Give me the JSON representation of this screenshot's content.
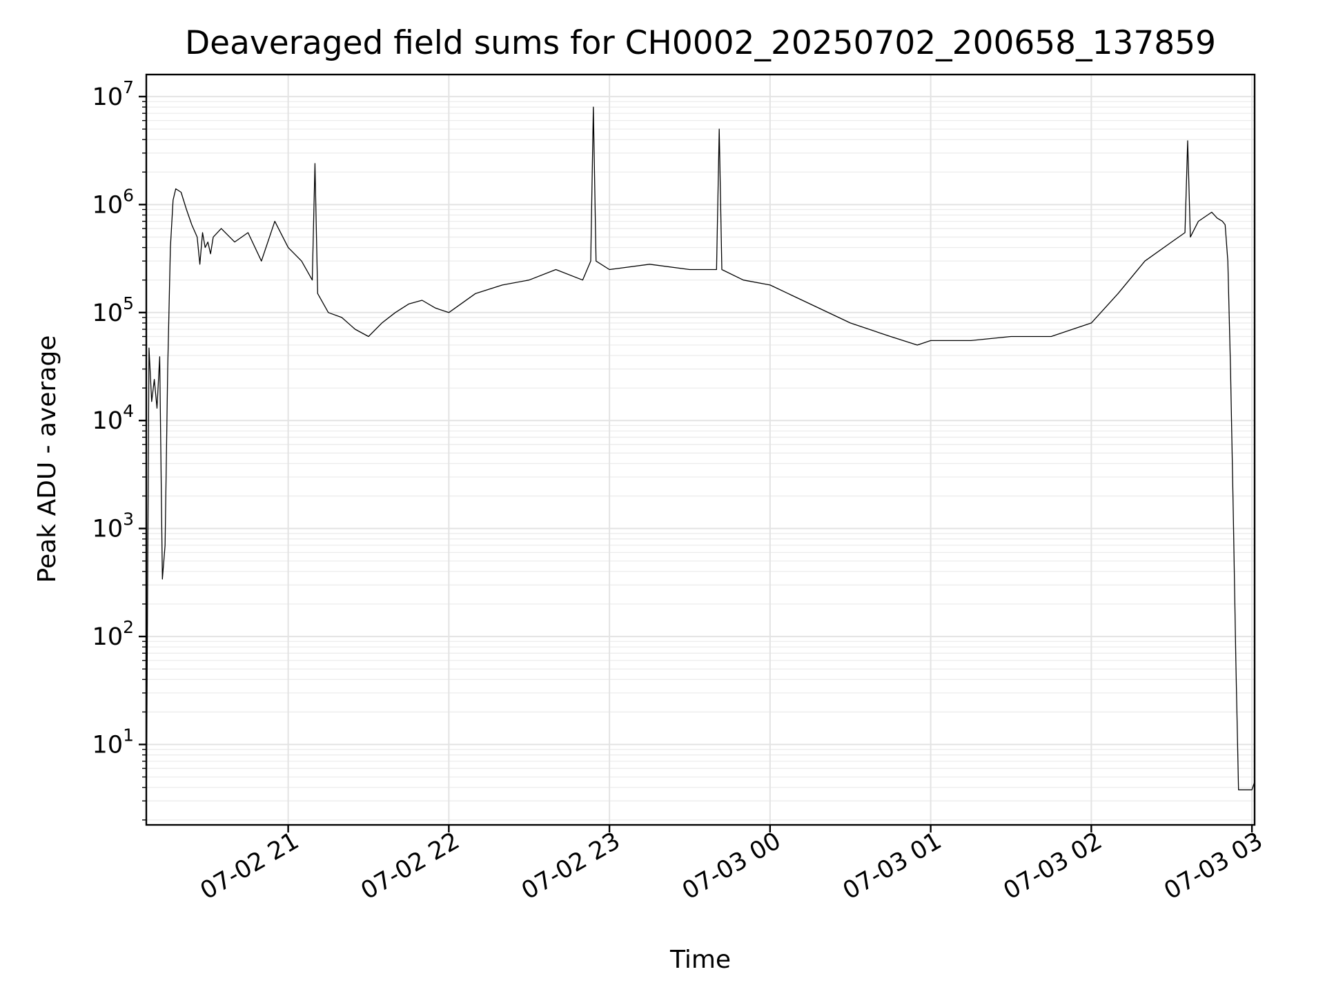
{
  "chart_data": {
    "type": "line",
    "title": "Deaveraged field sums for CH0002_20250702_200658_137859",
    "xlabel": "Time",
    "ylabel": "Peak ADU - average",
    "y_scale": "log",
    "ylim": [
      1.8,
      16000000
    ],
    "xlim": [
      "2025-07-02 20:07",
      "2025-07-03 03:01"
    ],
    "grid": "major and minor",
    "line_color": "#000000",
    "x_ticks": [
      {
        "value": "2025-07-02 21:00",
        "label": "07-02 21"
      },
      {
        "value": "2025-07-02 22:00",
        "label": "07-02 22"
      },
      {
        "value": "2025-07-02 23:00",
        "label": "07-02 23"
      },
      {
        "value": "2025-07-03 00:00",
        "label": "07-03 00"
      },
      {
        "value": "2025-07-03 01:00",
        "label": "07-03 01"
      },
      {
        "value": "2025-07-03 02:00",
        "label": "07-03 02"
      },
      {
        "value": "2025-07-03 03:00",
        "label": "07-03 03"
      }
    ],
    "y_ticks": [
      {
        "value": 10,
        "base": "10",
        "exp": "1"
      },
      {
        "value": 100,
        "base": "10",
        "exp": "2"
      },
      {
        "value": 1000,
        "base": "10",
        "exp": "3"
      },
      {
        "value": 10000,
        "base": "10",
        "exp": "4"
      },
      {
        "value": 100000,
        "base": "10",
        "exp": "5"
      },
      {
        "value": 1000000,
        "base": "10",
        "exp": "6"
      },
      {
        "value": 10000000,
        "base": "10",
        "exp": "7"
      }
    ],
    "series": [
      {
        "x": [
          "2025-07-02 20:07",
          "2025-07-02 20:08",
          "2025-07-02 20:09",
          "2025-07-02 20:10",
          "2025-07-02 20:11",
          "2025-07-02 20:12",
          "2025-07-02 20:13",
          "2025-07-02 20:14",
          "2025-07-02 20:15",
          "2025-07-02 20:16",
          "2025-07-02 20:17",
          "2025-07-02 20:18",
          "2025-07-02 20:20",
          "2025-07-02 20:22",
          "2025-07-02 20:24",
          "2025-07-02 20:26",
          "2025-07-02 20:27",
          "2025-07-02 20:28",
          "2025-07-02 20:29",
          "2025-07-02 20:30",
          "2025-07-02 20:31",
          "2025-07-02 20:32",
          "2025-07-02 20:35",
          "2025-07-02 20:40",
          "2025-07-02 20:45",
          "2025-07-02 20:50",
          "2025-07-02 20:55",
          "2025-07-02 21:00",
          "2025-07-02 21:05",
          "2025-07-02 21:09",
          "2025-07-02 21:10",
          "2025-07-02 21:11",
          "2025-07-02 21:15",
          "2025-07-02 21:20",
          "2025-07-02 21:25",
          "2025-07-02 21:30",
          "2025-07-02 21:35",
          "2025-07-02 21:40",
          "2025-07-02 21:45",
          "2025-07-02 21:50",
          "2025-07-02 21:55",
          "2025-07-02 22:00",
          "2025-07-02 22:10",
          "2025-07-02 22:20",
          "2025-07-02 22:30",
          "2025-07-02 22:40",
          "2025-07-02 22:50",
          "2025-07-02 22:53",
          "2025-07-02 22:54",
          "2025-07-02 22:55",
          "2025-07-02 23:00",
          "2025-07-02 23:15",
          "2025-07-02 23:30",
          "2025-07-02 23:40",
          "2025-07-02 23:41",
          "2025-07-02 23:42",
          "2025-07-02 23:50",
          "2025-07-03 00:00",
          "2025-07-03 00:15",
          "2025-07-03 00:30",
          "2025-07-03 00:45",
          "2025-07-03 00:55",
          "2025-07-03 01:00",
          "2025-07-03 01:15",
          "2025-07-03 01:30",
          "2025-07-03 01:45",
          "2025-07-03 02:00",
          "2025-07-03 02:10",
          "2025-07-03 02:20",
          "2025-07-03 02:30",
          "2025-07-03 02:35",
          "2025-07-03 02:36",
          "2025-07-03 02:37",
          "2025-07-03 02:40",
          "2025-07-03 02:45",
          "2025-07-03 02:47",
          "2025-07-03 02:49",
          "2025-07-03 02:50",
          "2025-07-03 02:51",
          "2025-07-03 02:52",
          "2025-07-03 02:53",
          "2025-07-03 02:54",
          "2025-07-03 02:55",
          "2025-07-03 03:00",
          "2025-07-03 03:01"
        ],
        "y": [
          1.8,
          47000,
          15000,
          24000,
          13000,
          39000,
          340,
          700,
          30000,
          400000,
          1100000,
          1400000,
          1300000,
          900000,
          650000,
          500000,
          280000,
          550000,
          400000,
          450000,
          350000,
          500000,
          600000,
          450000,
          550000,
          300000,
          700000,
          400000,
          300000,
          200000,
          2400000,
          150000,
          100000,
          90000,
          70000,
          60000,
          80000,
          100000,
          120000,
          130000,
          110000,
          100000,
          150000,
          180000,
          200000,
          250000,
          200000,
          300000,
          8000000,
          300000,
          250000,
          280000,
          250000,
          250000,
          5000000,
          250000,
          200000,
          180000,
          120000,
          80000,
          60000,
          50000,
          55000,
          55000,
          60000,
          60000,
          80000,
          150000,
          300000,
          450000,
          550000,
          3900000,
          500000,
          700000,
          850000,
          750000,
          700000,
          650000,
          300000,
          30000,
          1500,
          60,
          3.8,
          3.8,
          4.5
        ]
      }
    ]
  }
}
